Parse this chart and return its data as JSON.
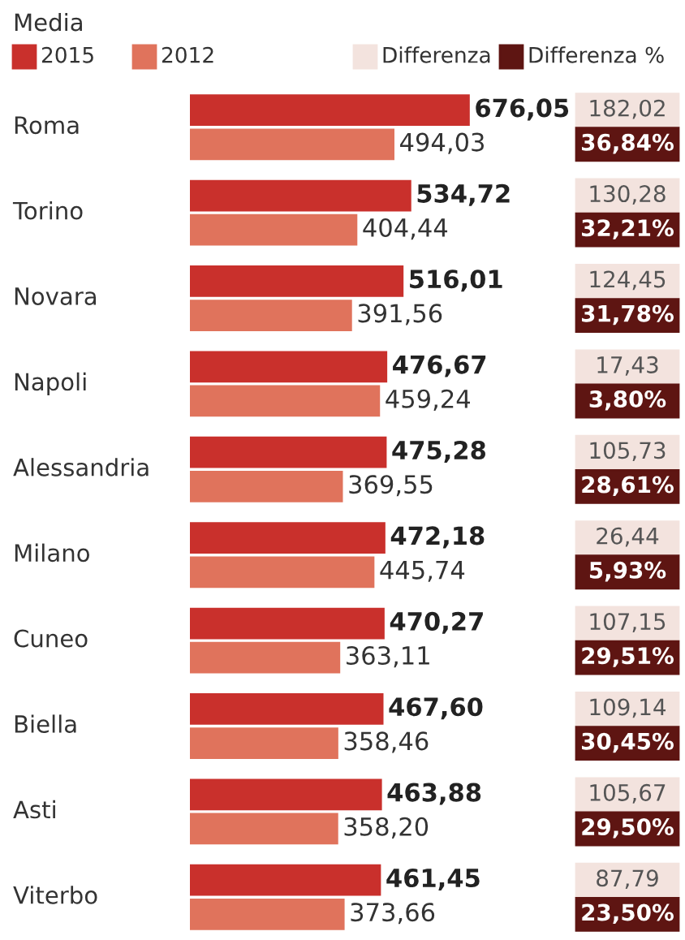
{
  "chart_data": {
    "type": "bar",
    "orientation": "horizontal",
    "title": "Media",
    "legend": "top",
    "categories": [
      "Roma",
      "Torino",
      "Novara",
      "Napoli",
      "Alessandria",
      "Milano",
      "Cuneo",
      "Biella",
      "Asti",
      "Viterbo"
    ],
    "series": [
      {
        "name": "2015",
        "color": "#c9302c",
        "values": [
          676.05,
          534.72,
          516.01,
          476.67,
          475.28,
          472.18,
          470.27,
          467.6,
          463.88,
          461.45
        ],
        "value_labels": [
          "676,05",
          "534,72",
          "516,01",
          "476,67",
          "475,28",
          "472,18",
          "470,27",
          "467,60",
          "463,88",
          "461,45"
        ]
      },
      {
        "name": "2012",
        "color": "#e0735c",
        "values": [
          494.03,
          404.44,
          391.56,
          459.24,
          369.55,
          445.74,
          363.11,
          358.46,
          358.2,
          373.66
        ],
        "value_labels": [
          "494,03",
          "404,44",
          "391,56",
          "459,24",
          "369,55",
          "445,74",
          "363,11",
          "358,46",
          "358,20",
          "373,66"
        ]
      },
      {
        "name": "Differenza",
        "type": "other",
        "color": "#f3e3de",
        "values": [
          null,
          null,
          null,
          null,
          null,
          null,
          null,
          null,
          null,
          null
        ],
        "value_labels": [
          "182,02",
          "130,28",
          "124,45",
          "17,43",
          "105,73",
          "26,44",
          "107,15",
          "109,14",
          "105,67",
          "87,79"
        ]
      },
      {
        "name": "Differenza %",
        "type": "other",
        "color": "#5e1512",
        "values": [
          null,
          null,
          null,
          null,
          null,
          null,
          null,
          null,
          null,
          null
        ],
        "value_labels": [
          "36,84%",
          "32,21%",
          "31,78%",
          "3,80%",
          "28,61%",
          "5,93%",
          "29,51%",
          "30,45%",
          "29,50%",
          "23,50%"
        ]
      }
    ]
  }
}
